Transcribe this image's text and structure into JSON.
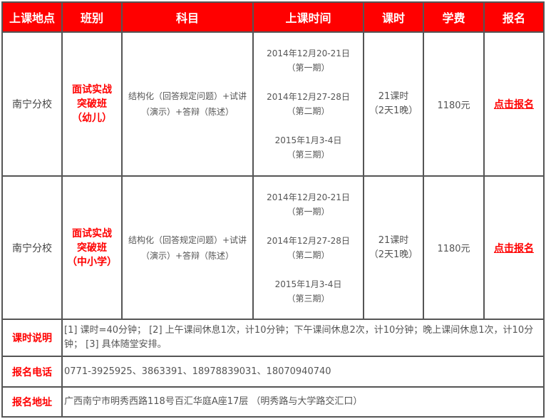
{
  "headers": [
    "上课地点",
    "班别",
    "科目",
    "上课时间",
    "课时",
    "学费",
    "报名"
  ],
  "rows": [
    {
      "location": "南宁分校",
      "class_lines": [
        "面试实战",
        "突破班",
        "（幼儿）"
      ],
      "subject": "结构化（回答规定问题）+试讲（演示）+答辩（陈述）",
      "sessions": [
        {
          "date": "2014年12月20-21日",
          "period": "（第一期）"
        },
        {
          "date": "2014年12月27-28日",
          "period": "（第二期）"
        },
        {
          "date": "2015年1月3-4日",
          "period": "（第三期）"
        }
      ],
      "hours": "21课时",
      "hours_detail": "（2天1晚）",
      "fee": "1180元",
      "signup": "点击报名"
    },
    {
      "location": "南宁分校",
      "class_lines": [
        "面试实战",
        "突破班",
        "（中小学）"
      ],
      "subject": "结构化（回答规定问题）+试讲（演示）+答辩（陈述）",
      "sessions": [
        {
          "date": "2014年12月20-21日",
          "period": "（第一期）"
        },
        {
          "date": "2014年12月27-28日",
          "period": "（第二期）"
        },
        {
          "date": "2015年1月3-4日",
          "period": "（第三期）"
        }
      ],
      "hours": "21课时",
      "hours_detail": "（2天1晚）",
      "fee": "1180元",
      "signup": "点击报名"
    }
  ],
  "notes": {
    "hours_label": "课时说明",
    "hours_text": "[1] 课时=40分钟；  [2] 上午课间休息1次，计10分钟；下午课间休息2次，计10分钟；晚上课间休息1次，计10分钟；  [3] 具体随堂安排。",
    "phone_label": "报名电话",
    "phone_text": "0771-3925925、3863391、18978839031、18070940740",
    "address_label": "报名地址",
    "address_text": "广西南宁市明秀西路118号百汇华庭A座17层 （明秀路与大学路交汇口）"
  },
  "colors": {
    "header_bg": "#ff0000",
    "accent": "#ff0000",
    "border": "#555555"
  }
}
